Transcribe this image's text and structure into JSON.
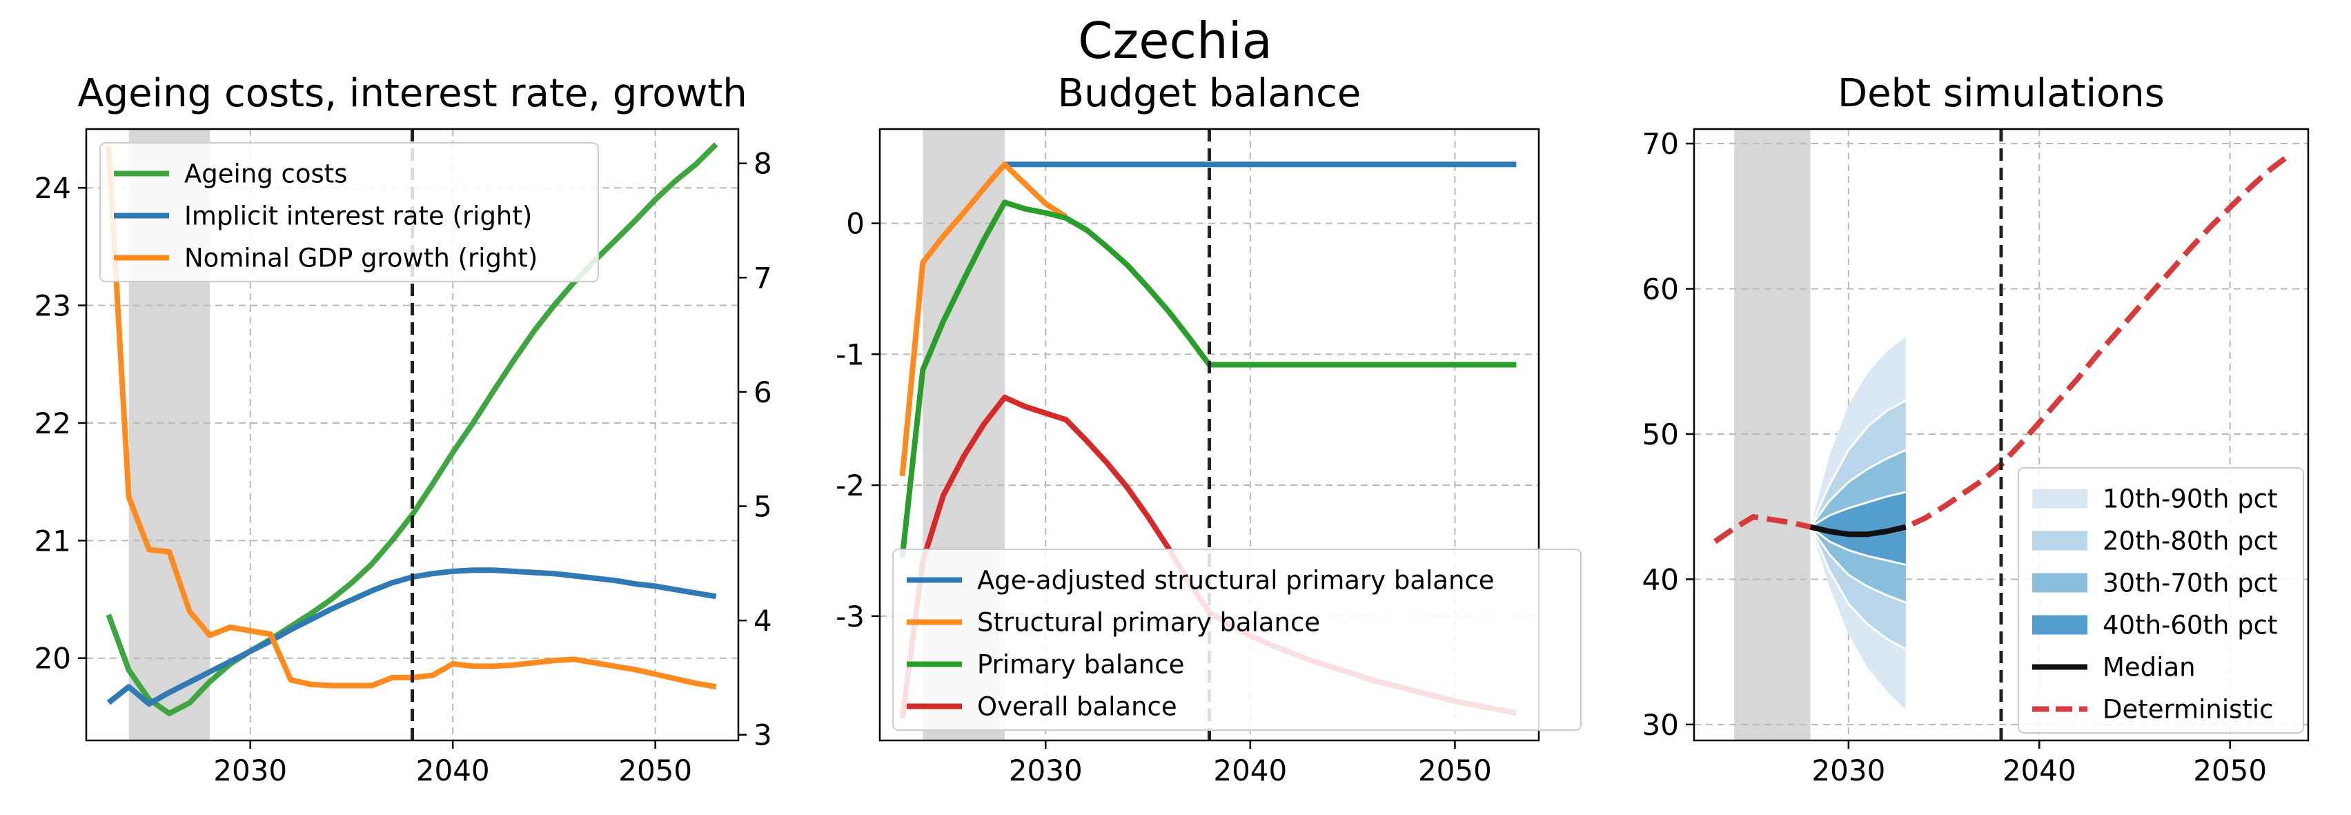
{
  "figure": {
    "suptitle": "Czechia"
  },
  "chart_data": [
    {
      "type": "line",
      "title": "Ageing costs, interest rate, growth",
      "xlim": [
        2021.9,
        2054.1
      ],
      "ylim": [
        19.3,
        24.5
      ],
      "ylim_right": [
        2.95,
        8.3
      ],
      "xticks": [
        2030,
        2040,
        2050
      ],
      "yticks": [
        20,
        21,
        22,
        23,
        24
      ],
      "yticks_right": [
        3,
        4,
        5,
        6,
        7,
        8
      ],
      "shaded_x": [
        2024,
        2028
      ],
      "vline_x": 2038,
      "grid": true,
      "legend": "upper left",
      "series": [
        {
          "name": "Ageing costs",
          "axis": "left",
          "color": "#3fa540",
          "x": [
            2023,
            2024,
            2025,
            2026,
            2027,
            2028,
            2029,
            2030,
            2031,
            2032,
            2033,
            2034,
            2035,
            2036,
            2037,
            2038,
            2039,
            2040,
            2041,
            2042,
            2043,
            2044,
            2045,
            2046,
            2047,
            2048,
            2049,
            2050,
            2051,
            2052,
            2053
          ],
          "values": [
            20.37,
            19.9,
            19.65,
            19.53,
            19.62,
            19.8,
            19.95,
            20.06,
            20.16,
            20.27,
            20.38,
            20.5,
            20.64,
            20.8,
            21.0,
            21.22,
            21.48,
            21.75,
            22.0,
            22.27,
            22.53,
            22.78,
            23.0,
            23.2,
            23.38,
            23.55,
            23.72,
            23.9,
            24.06,
            24.2,
            24.37
          ]
        },
        {
          "name": "Implicit interest rate (right)",
          "axis": "right",
          "color": "#2f7ab5",
          "x": [
            2023,
            2024,
            2025,
            2026,
            2027,
            2028,
            2029,
            2030,
            2031,
            2032,
            2033,
            2034,
            2035,
            2036,
            2037,
            2038,
            2039,
            2040,
            2041,
            2042,
            2043,
            2044,
            2045,
            2046,
            2047,
            2048,
            2049,
            2050,
            2051,
            2052,
            2053
          ],
          "values": [
            3.28,
            3.42,
            3.27,
            3.37,
            3.46,
            3.55,
            3.64,
            3.73,
            3.82,
            3.92,
            4.01,
            4.1,
            4.18,
            4.26,
            4.33,
            4.38,
            4.41,
            4.43,
            4.44,
            4.44,
            4.43,
            4.42,
            4.41,
            4.39,
            4.37,
            4.35,
            4.32,
            4.3,
            4.27,
            4.24,
            4.21
          ]
        },
        {
          "name": "Nominal GDP growth (right)",
          "axis": "right",
          "color": "#ff8a1f",
          "x": [
            2023,
            2024,
            2025,
            2026,
            2027,
            2028,
            2029,
            2030,
            2031,
            2032,
            2033,
            2034,
            2035,
            2036,
            2037,
            2038,
            2039,
            2040,
            2041,
            2042,
            2043,
            2044,
            2045,
            2046,
            2047,
            2048,
            2049,
            2050,
            2051,
            2052,
            2053
          ],
          "values": [
            8.15,
            5.08,
            4.62,
            4.6,
            4.08,
            3.87,
            3.94,
            3.91,
            3.88,
            3.48,
            3.44,
            3.43,
            3.43,
            3.43,
            3.5,
            3.5,
            3.52,
            3.62,
            3.6,
            3.6,
            3.61,
            3.63,
            3.65,
            3.66,
            3.63,
            3.6,
            3.57,
            3.53,
            3.49,
            3.45,
            3.42
          ]
        }
      ]
    },
    {
      "type": "line",
      "title": "Budget balance",
      "xlim": [
        2021.9,
        2054.1
      ],
      "ylim": [
        -3.95,
        0.72
      ],
      "xticks": [
        2030,
        2040,
        2050
      ],
      "yticks": [
        0,
        -1,
        -2,
        -3
      ],
      "ytick_labels": [
        "0",
        "-1",
        "-2",
        "-3"
      ],
      "shaded_x": [
        2024,
        2028
      ],
      "vline_x": 2038,
      "grid": true,
      "legend": "lower left",
      "series": [
        {
          "name": "Age-adjusted structural primary balance",
          "color": "#2f7ab5",
          "x": [
            2028,
            2053
          ],
          "values": [
            0.45,
            0.45
          ]
        },
        {
          "name": "Structural primary balance",
          "color": "#ff8a1f",
          "x": [
            2023,
            2024,
            2025,
            2026,
            2027,
            2028,
            2029,
            2030,
            2031
          ],
          "values": [
            -1.93,
            -0.3,
            -0.1,
            0.08,
            0.27,
            0.45,
            0.3,
            0.15,
            0.05
          ]
        },
        {
          "name": "Primary balance",
          "color": "#2a9e2a",
          "x": [
            2023,
            2024,
            2025,
            2026,
            2027,
            2028,
            2029,
            2030,
            2031,
            2032,
            2033,
            2034,
            2035,
            2036,
            2037,
            2038,
            2053
          ],
          "values": [
            -2.55,
            -1.12,
            -0.75,
            -0.43,
            -0.12,
            0.16,
            0.11,
            0.08,
            0.04,
            -0.05,
            -0.18,
            -0.32,
            -0.49,
            -0.67,
            -0.87,
            -1.08,
            -1.08
          ]
        },
        {
          "name": "Overall balance",
          "color": "#d62a2a",
          "x": [
            2023,
            2024,
            2025,
            2026,
            2027,
            2028,
            2029,
            2030,
            2031,
            2032,
            2033,
            2034,
            2035,
            2036,
            2037,
            2038,
            2039,
            2040,
            2041,
            2042,
            2043,
            2044,
            2045,
            2046,
            2047,
            2048,
            2049,
            2050,
            2051,
            2052,
            2053
          ],
          "values": [
            -3.78,
            -2.58,
            -2.08,
            -1.78,
            -1.53,
            -1.33,
            -1.4,
            -1.45,
            -1.5,
            -1.66,
            -1.83,
            -2.02,
            -2.24,
            -2.48,
            -2.74,
            -2.97,
            -3.07,
            -3.15,
            -3.22,
            -3.28,
            -3.34,
            -3.39,
            -3.44,
            -3.49,
            -3.53,
            -3.57,
            -3.61,
            -3.65,
            -3.68,
            -3.71,
            -3.74
          ]
        }
      ]
    },
    {
      "type": "area",
      "title": "Debt simulations",
      "xlim": [
        2021.9,
        2054.1
      ],
      "ylim": [
        28.9,
        71.0
      ],
      "xticks": [
        2030,
        2040,
        2050
      ],
      "yticks": [
        30,
        40,
        50,
        60,
        70
      ],
      "shaded_x": [
        2024,
        2028
      ],
      "vline_x": 2038,
      "grid": true,
      "legend": "lower right",
      "fan_x": [
        2028,
        2029,
        2030,
        2031,
        2032,
        2033
      ],
      "fan_bands": [
        {
          "name": "10th-90th pct",
          "color": "#dae8f5",
          "lower": [
            43.6,
            39.5,
            36.2,
            33.9,
            32.3,
            31.0
          ],
          "upper": [
            43.6,
            48.5,
            52.0,
            54.2,
            55.7,
            56.7
          ]
        },
        {
          "name": "20th-80th pct",
          "color": "#bad6eb",
          "lower": [
            43.6,
            40.6,
            38.3,
            36.9,
            35.9,
            35.2
          ],
          "upper": [
            43.6,
            46.5,
            48.9,
            50.5,
            51.6,
            52.3
          ]
        },
        {
          "name": "30th-70th pct",
          "color": "#89bfdd",
          "lower": [
            43.6,
            41.7,
            40.3,
            39.5,
            38.9,
            38.4
          ],
          "upper": [
            43.6,
            45.4,
            46.7,
            47.6,
            48.3,
            48.9
          ]
        },
        {
          "name": "40th-60th pct",
          "color": "#539ecd",
          "lower": [
            43.6,
            42.6,
            42.0,
            41.6,
            41.3,
            41.0
          ],
          "upper": [
            43.6,
            44.4,
            44.9,
            45.3,
            45.7,
            46.0
          ]
        }
      ],
      "series": [
        {
          "name": "Median",
          "color": "#111111",
          "style": "solid",
          "x": [
            2028,
            2029,
            2030,
            2031,
            2032,
            2033
          ],
          "values": [
            43.6,
            43.3,
            43.1,
            43.1,
            43.3,
            43.6
          ]
        },
        {
          "name": "Deterministic",
          "color": "#d63a3a",
          "style": "dashed",
          "x": [
            2023,
            2024,
            2025,
            2026,
            2027,
            2028,
            2029,
            2030,
            2031,
            2032,
            2033,
            2034,
            2035,
            2036,
            2037,
            2038,
            2039,
            2040,
            2041,
            2042,
            2043,
            2044,
            2045,
            2046,
            2047,
            2048,
            2049,
            2050,
            2051,
            2052,
            2053
          ],
          "values": [
            42.6,
            43.5,
            44.3,
            44.1,
            43.9,
            43.6,
            43.3,
            43.1,
            43.1,
            43.3,
            43.6,
            44.2,
            45.0,
            45.9,
            46.8,
            47.9,
            49.3,
            50.8,
            52.3,
            53.8,
            55.4,
            56.9,
            58.4,
            59.9,
            61.4,
            62.9,
            64.3,
            65.6,
            66.9,
            68.1,
            69.1
          ]
        }
      ]
    }
  ]
}
